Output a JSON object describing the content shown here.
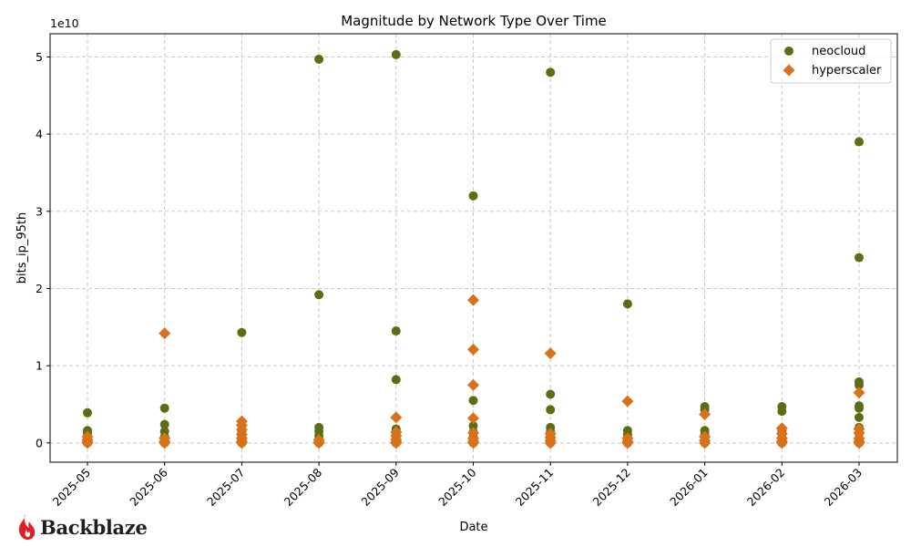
{
  "chart_data": {
    "type": "scatter",
    "title": "Magnitude by Network Type Over Time",
    "xlabel": "Date",
    "ylabel": "bits_ip_95th",
    "y_offset_label": "1e10",
    "y_scale_factor": 10000000000,
    "x_ticks": [
      "2025-05",
      "2025-06",
      "2025-07",
      "2025-08",
      "2025-09",
      "2025-10",
      "2025-11",
      "2025-12",
      "2026-01",
      "2026-02",
      "2026-03"
    ],
    "ylim": [
      -2500000000.0,
      53000000000.0
    ],
    "y_ticks": [
      0,
      1,
      2,
      3,
      4,
      5
    ],
    "grid": true,
    "legend_position": "top-right",
    "series": [
      {
        "name": "neocloud",
        "color": "#5c6e14",
        "marker": "circle",
        "points": [
          [
            "2025-05",
            3900000000.0
          ],
          [
            "2025-05",
            1600000000.0
          ],
          [
            "2025-05",
            1200000000.0
          ],
          [
            "2025-05",
            600000000.0
          ],
          [
            "2025-05",
            200000000.0
          ],
          [
            "2025-05",
            0
          ],
          [
            "2025-06",
            4500000000.0
          ],
          [
            "2025-06",
            2400000000.0
          ],
          [
            "2025-06",
            1500000000.0
          ],
          [
            "2025-06",
            800000000.0
          ],
          [
            "2025-06",
            300000000.0
          ],
          [
            "2025-06",
            0
          ],
          [
            "2025-07",
            14300000000.0
          ],
          [
            "2025-07",
            2200000000.0
          ],
          [
            "2025-07",
            1500000000.0
          ],
          [
            "2025-07",
            900000000.0
          ],
          [
            "2025-07",
            400000000.0
          ],
          [
            "2025-07",
            0
          ],
          [
            "2025-08",
            49700000000.0
          ],
          [
            "2025-08",
            19200000000.0
          ],
          [
            "2025-08",
            2000000000.0
          ],
          [
            "2025-08",
            1500000000.0
          ],
          [
            "2025-08",
            900000000.0
          ],
          [
            "2025-08",
            400000000.0
          ],
          [
            "2025-08",
            0
          ],
          [
            "2025-09",
            50300000000.0
          ],
          [
            "2025-09",
            14500000000.0
          ],
          [
            "2025-09",
            8200000000.0
          ],
          [
            "2025-09",
            1800000000.0
          ],
          [
            "2025-09",
            1200000000.0
          ],
          [
            "2025-09",
            600000000.0
          ],
          [
            "2025-09",
            200000000.0
          ],
          [
            "2025-09",
            0
          ],
          [
            "2025-10",
            32000000000.0
          ],
          [
            "2025-10",
            5500000000.0
          ],
          [
            "2025-10",
            2200000000.0
          ],
          [
            "2025-10",
            1400000000.0
          ],
          [
            "2025-10",
            800000000.0
          ],
          [
            "2025-10",
            300000000.0
          ],
          [
            "2025-10",
            0
          ],
          [
            "2025-11",
            48000000000.0
          ],
          [
            "2025-11",
            6300000000.0
          ],
          [
            "2025-11",
            4300000000.0
          ],
          [
            "2025-11",
            2000000000.0
          ],
          [
            "2025-11",
            1500000000.0
          ],
          [
            "2025-11",
            900000000.0
          ],
          [
            "2025-11",
            300000000.0
          ],
          [
            "2025-11",
            0
          ],
          [
            "2025-12",
            18000000000.0
          ],
          [
            "2025-12",
            1600000000.0
          ],
          [
            "2025-12",
            1100000000.0
          ],
          [
            "2025-12",
            600000000.0
          ],
          [
            "2025-12",
            200000000.0
          ],
          [
            "2025-12",
            0
          ],
          [
            "2026-01",
            4700000000.0
          ],
          [
            "2026-01",
            4300000000.0
          ],
          [
            "2026-01",
            1600000000.0
          ],
          [
            "2026-01",
            1100000000.0
          ],
          [
            "2026-01",
            600000000.0
          ],
          [
            "2026-01",
            200000000.0
          ],
          [
            "2026-01",
            0
          ],
          [
            "2026-02",
            4700000000.0
          ],
          [
            "2026-02",
            4100000000.0
          ],
          [
            "2026-02",
            1600000000.0
          ],
          [
            "2026-02",
            1100000000.0
          ],
          [
            "2026-02",
            600000000.0
          ],
          [
            "2026-02",
            200000000.0
          ],
          [
            "2026-02",
            0
          ],
          [
            "2026-03",
            39000000000.0
          ],
          [
            "2026-03",
            24000000000.0
          ],
          [
            "2026-03",
            7900000000.0
          ],
          [
            "2026-03",
            7500000000.0
          ],
          [
            "2026-03",
            4800000000.0
          ],
          [
            "2026-03",
            4500000000.0
          ],
          [
            "2026-03",
            3300000000.0
          ],
          [
            "2026-03",
            2000000000.0
          ],
          [
            "2026-03",
            1200000000.0
          ],
          [
            "2026-03",
            500000000.0
          ],
          [
            "2026-03",
            0
          ]
        ]
      },
      {
        "name": "hyperscaler",
        "color": "#d9711b",
        "marker": "diamond",
        "points": [
          [
            "2025-05",
            800000000.0
          ],
          [
            "2025-05",
            400000000.0
          ],
          [
            "2025-05",
            100000000.0
          ],
          [
            "2025-05",
            0
          ],
          [
            "2025-06",
            14200000000.0
          ],
          [
            "2025-06",
            600000000.0
          ],
          [
            "2025-06",
            200000000.0
          ],
          [
            "2025-06",
            0
          ],
          [
            "2025-07",
            2800000000.0
          ],
          [
            "2025-07",
            2300000000.0
          ],
          [
            "2025-07",
            1700000000.0
          ],
          [
            "2025-07",
            1100000000.0
          ],
          [
            "2025-07",
            600000000.0
          ],
          [
            "2025-07",
            200000000.0
          ],
          [
            "2025-07",
            0
          ],
          [
            "2025-08",
            400000000.0
          ],
          [
            "2025-08",
            100000000.0
          ],
          [
            "2025-08",
            0
          ],
          [
            "2025-09",
            3300000000.0
          ],
          [
            "2025-09",
            1400000000.0
          ],
          [
            "2025-09",
            900000000.0
          ],
          [
            "2025-09",
            400000000.0
          ],
          [
            "2025-09",
            100000000.0
          ],
          [
            "2025-09",
            0
          ],
          [
            "2025-10",
            18500000000.0
          ],
          [
            "2025-10",
            12100000000.0
          ],
          [
            "2025-10",
            7500000000.0
          ],
          [
            "2025-10",
            3200000000.0
          ],
          [
            "2025-10",
            1300000000.0
          ],
          [
            "2025-10",
            600000000.0
          ],
          [
            "2025-10",
            200000000.0
          ],
          [
            "2025-10",
            0
          ],
          [
            "2025-11",
            11600000000.0
          ],
          [
            "2025-11",
            1200000000.0
          ],
          [
            "2025-11",
            700000000.0
          ],
          [
            "2025-11",
            300000000.0
          ],
          [
            "2025-11",
            0
          ],
          [
            "2025-12",
            5400000000.0
          ],
          [
            "2025-12",
            600000000.0
          ],
          [
            "2025-12",
            200000000.0
          ],
          [
            "2025-12",
            0
          ],
          [
            "2026-01",
            3700000000.0
          ],
          [
            "2026-01",
            800000000.0
          ],
          [
            "2026-01",
            300000000.0
          ],
          [
            "2026-01",
            0
          ],
          [
            "2026-02",
            1900000000.0
          ],
          [
            "2026-02",
            1200000000.0
          ],
          [
            "2026-02",
            600000000.0
          ],
          [
            "2026-02",
            200000000.0
          ],
          [
            "2026-02",
            0
          ],
          [
            "2026-03",
            6500000000.0
          ],
          [
            "2026-03",
            1800000000.0
          ],
          [
            "2026-03",
            1300000000.0
          ],
          [
            "2026-03",
            600000000.0
          ],
          [
            "2026-03",
            200000000.0
          ],
          [
            "2026-03",
            0
          ]
        ]
      }
    ]
  },
  "brand": {
    "logo_text": "Backblaze",
    "logo_color": "#e01f26"
  }
}
